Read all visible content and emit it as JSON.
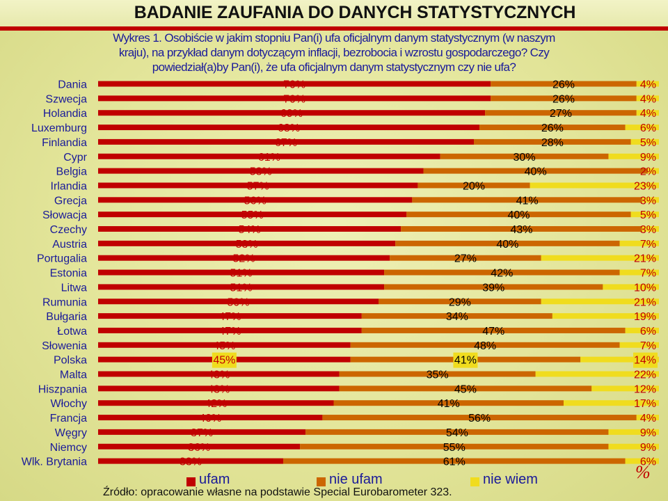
{
  "header": {
    "title": "BADANIE ZAUFANIA DO DANYCH STATYSTYCZNYCH"
  },
  "chart_title_lines": [
    "Wykres 1. Osobiście w jakim stopniu Pan(i) ufa oficjalnym danym statystycznym (w naszym",
    "kraju), na przykład danym dotyczącym inflacji, bezrobocia i wzrostu gospodarczego? Czy",
    "powiedział(a)by Pan(i), że ufa oficjalnym danym statystycznym czy nie ufa?"
  ],
  "chart_data": {
    "type": "bar",
    "orientation": "horizontal",
    "stacked": true,
    "title": "Wykres 1. Osobiście w jakim stopniu Pan(i) ufa oficjalnym danym statystycznym (w naszym kraju), na przykład danym dotyczącym inflacji, bezrobocia i wzrostu gospodarczego? Czy powiedział(a)by Pan(i), że ufa oficjalnym danym statystycznym czy nie ufa?",
    "unit": "%",
    "xlim": [
      0,
      100
    ],
    "legend_position": "bottom",
    "categories": [
      "Dania",
      "Szwecja",
      "Holandia",
      "Luxemburg",
      "Finlandia",
      "Cypr",
      "Belgia",
      "Irlandia",
      "Grecja",
      "Słowacja",
      "Czechy",
      "Austria",
      "Portugalia",
      "Estonia",
      "Litwa",
      "Rumunia",
      "Bułgaria",
      "Łotwa",
      "Słowenia",
      "Polska",
      "Malta",
      "Hiszpania",
      "Włochy",
      "Francja",
      "Węgry",
      "Niemcy",
      "Wlk. Brytania"
    ],
    "series": [
      {
        "name": "ufam",
        "color": "#c00000",
        "values": [
          70,
          70,
          69,
          68,
          67,
          61,
          58,
          57,
          56,
          55,
          54,
          53,
          52,
          51,
          51,
          50,
          47,
          47,
          45,
          45,
          43,
          43,
          42,
          40,
          37,
          36,
          33
        ]
      },
      {
        "name": "nie ufam",
        "color": "#cc6600",
        "values": [
          26,
          26,
          27,
          26,
          28,
          30,
          40,
          20,
          41,
          40,
          43,
          40,
          27,
          42,
          39,
          29,
          34,
          47,
          48,
          41,
          35,
          45,
          41,
          56,
          54,
          55,
          61
        ]
      },
      {
        "name": "nie wiem",
        "color": "#f0dc1e",
        "values": [
          4,
          4,
          4,
          6,
          5,
          9,
          2,
          23,
          3,
          5,
          3,
          7,
          21,
          7,
          10,
          21,
          19,
          6,
          7,
          14,
          22,
          12,
          17,
          4,
          9,
          9,
          6
        ]
      }
    ],
    "highlight_category": "Polska",
    "highlight_color": "#f0dc1e"
  },
  "legend": {
    "ufam": "ufam",
    "nie_ufam": "nie ufam",
    "nie_wiem": "nie wiem"
  },
  "percent_mark": "%",
  "source": "Źródło: opracowanie własne na podstawie Special Eurobarometer 323."
}
